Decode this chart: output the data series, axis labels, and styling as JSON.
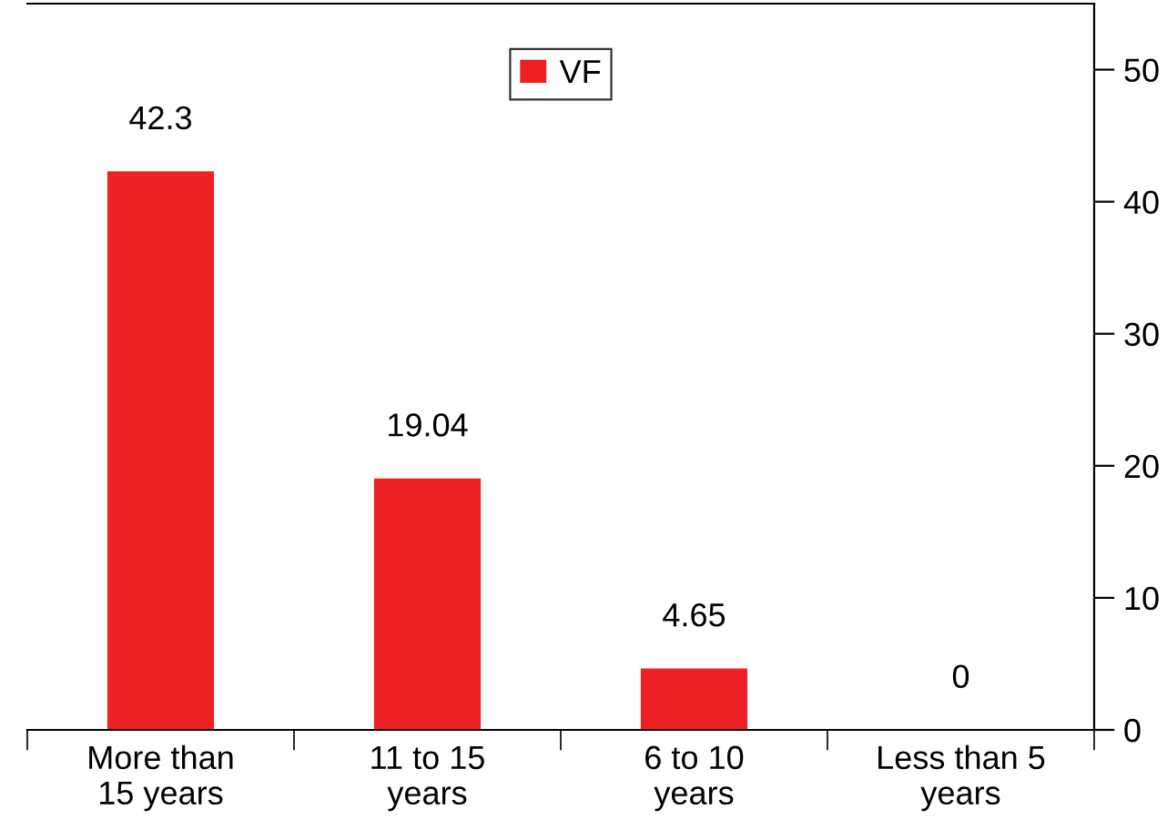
{
  "chart_data": {
    "type": "bar",
    "categories": [
      "More than\n15 years",
      "11 to 15\nyears",
      "6 to 10\nyears",
      "Less than 5\nyears"
    ],
    "series": [
      {
        "name": "VF",
        "color": "#ee2024",
        "values": [
          42.3,
          19.04,
          4.65,
          0
        ]
      }
    ],
    "ylim": [
      0,
      55
    ],
    "yticks": [
      0,
      10,
      20,
      30,
      40,
      50
    ],
    "data_labels": true,
    "legend": "top",
    "grid": false
  }
}
